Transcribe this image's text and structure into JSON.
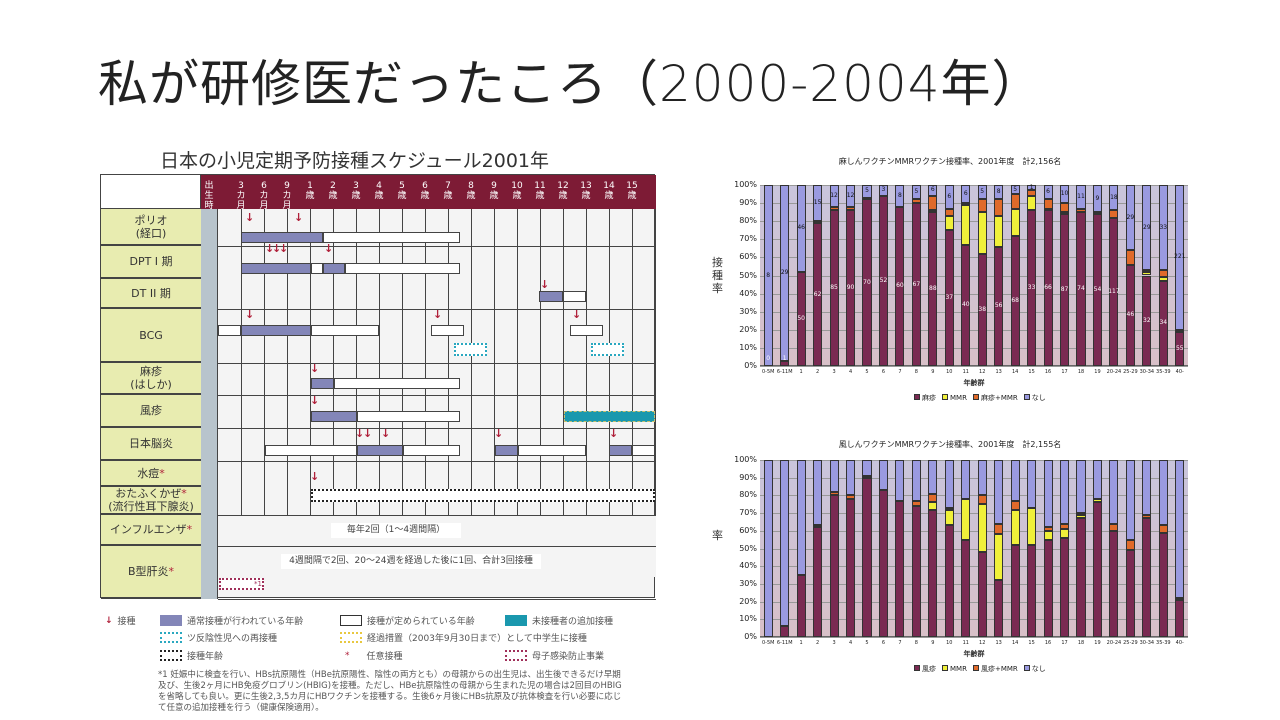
{
  "slide": {
    "title": "私が研修医だったころ（2000-2004年）"
  },
  "schedule": {
    "title": "日本の小児定期予防接種スケジュール2001年",
    "columns": [
      "出生時",
      "3カ月",
      "6カ月",
      "9カ月",
      "1歳",
      "2歳",
      "3歳",
      "4歳",
      "5歳",
      "6歳",
      "7歳",
      "8歳",
      "9歳",
      "10歳",
      "11歳",
      "12歳",
      "13歳",
      "14歳",
      "15歳"
    ],
    "rows": {
      "polio": "ポリオ",
      "polio_sub": "(経口)",
      "dpt1": "DPT I 期",
      "dt2": "DT II 期",
      "bcg": "BCG",
      "measles": "麻疹",
      "measles_sub": "(はしか)",
      "rubella": "風疹",
      "je": "日本脳炎",
      "varicella": "水痘",
      "mumps": "おたふくかぜ",
      "mumps_sub": "(流行性耳下腺炎)",
      "flu": "インフルエンザ",
      "hepb": "B型肝炎",
      "star": "*"
    },
    "flu_note": "毎年2回（1〜4週間隔）",
    "hepb_note": "4週間隔で2回、20〜24週を経過した後に1回、合計3回接種",
    "hepb_mark": "*1",
    "legend": {
      "arrow": "接種",
      "usual": "通常接種が行われている年齢",
      "defined": "接種が定められている年齢",
      "extra": "未接種者の追加接種",
      "tuberculin": "ツ反陰性児への再接種",
      "transitional": "経過措置（2003年9月30日まで）として中学生に接種",
      "age": "接種年齢",
      "optional": "任意接種",
      "mother": "母子感染防止事業",
      "star": "*"
    },
    "footnote": "*1 妊娠中に検査を行い、HBs抗原陽性（HBe抗原陽性、陰性の両方とも）の母親からの出生児は、出生後できるだけ早期及び、生後2ヶ月にHB免疫グロブリン(HBIG)を接種。ただし、HBe抗原陰性の母親から生まれた児の場合は2回目のHBIGを省略しても良い。更に生後2,3,5カ月にHBワクチンを接種する。生後6ヶ月後にHBs抗原及び抗体検査を行い必要に応じて任意の追加接種を行う（健康保険適用）。"
  },
  "colors": {
    "header": "#7d1b35",
    "label_bg": "#e8ecb0",
    "usual": "#8386b8",
    "extra": "#1a98ae",
    "arrow": "#b0203a",
    "s1": "#7a2a52",
    "s2": "#f0f03a",
    "s3": "#e06a2a",
    "s4": "#9a9ae0"
  },
  "chart_data": [
    {
      "type": "bar",
      "stacked": true,
      "title": "麻しんワクチンMMRワクチン接種率、2001年度　計2,156名",
      "xlabel": "年齢群",
      "ylabel": "接種率",
      "ylim": [
        0,
        100
      ],
      "yticks": [
        "0%",
        "10%",
        "20%",
        "30%",
        "40%",
        "50%",
        "60%",
        "70%",
        "80%",
        "90%",
        "100%"
      ],
      "legend_position": "bottom",
      "categories": [
        "0-5M",
        "6-11M",
        "1",
        "2",
        "3",
        "4",
        "5",
        "6",
        "7",
        "8",
        "9",
        "10",
        "11",
        "12",
        "13",
        "14",
        "15",
        "16",
        "17",
        "18",
        "19",
        "20-24",
        "25-29",
        "30-34",
        "35-39",
        "40-"
      ],
      "series": [
        {
          "name": "麻疹",
          "values": [
            0,
            3,
            52,
            79,
            86,
            86,
            92,
            94,
            88,
            90,
            85,
            75,
            67,
            62,
            66,
            72,
            86,
            86,
            84,
            85,
            84,
            82,
            56,
            50,
            47,
            19
          ]
        },
        {
          "name": "MMR",
          "values": [
            0,
            0,
            0,
            0,
            0,
            0,
            0,
            0,
            0,
            0,
            1,
            8,
            22,
            23,
            17,
            15,
            8,
            1,
            1,
            0,
            1,
            0,
            0,
            2,
            2,
            0
          ]
        },
        {
          "name": "麻疹+MMR",
          "values": [
            0,
            0,
            0,
            1,
            2,
            2,
            1,
            0,
            0,
            2,
            8,
            4,
            1,
            7,
            9,
            8,
            3,
            5,
            5,
            2,
            0,
            4,
            8,
            1,
            4,
            1
          ]
        },
        {
          "name": "なし",
          "values": [
            100,
            97,
            48,
            20,
            12,
            12,
            7,
            6,
            12,
            8,
            6,
            13,
            10,
            8,
            8,
            5,
            3,
            8,
            10,
            13,
            15,
            14,
            36,
            47,
            47,
            80
          ]
        }
      ],
      "count_labels_measles": [
        "0",
        "1",
        "50",
        "62",
        "85",
        "90",
        "70",
        "52",
        "60",
        "67",
        "88",
        "37",
        "40",
        "38",
        "56",
        "68",
        "33",
        "66",
        "87",
        "74",
        "54",
        "117",
        "46",
        "32",
        "34",
        "55"
      ],
      "count_labels_none": [
        "8",
        "29",
        "46",
        "15",
        "12",
        "12",
        "5",
        "3",
        "8",
        "5",
        "6",
        "6",
        "6",
        "5",
        "8",
        "5",
        "1",
        "6",
        "10",
        "11",
        "9",
        "18",
        "29",
        "29",
        "33",
        "221"
      ]
    },
    {
      "type": "bar",
      "stacked": true,
      "title": "風しんワクチンMMRワクチン接種率、2001年度　計2,155名",
      "xlabel": "年齢群",
      "ylabel": "率",
      "ylim": [
        0,
        100
      ],
      "yticks": [
        "0%",
        "10%",
        "20%",
        "30%",
        "40%",
        "50%",
        "60%",
        "70%",
        "80%",
        "90%",
        "100%"
      ],
      "legend_position": "bottom",
      "categories": [
        "0-5M",
        "6-11M",
        "1",
        "2",
        "3",
        "4",
        "5",
        "6",
        "7",
        "8",
        "9",
        "10",
        "11",
        "12",
        "13",
        "14",
        "15",
        "16",
        "17",
        "18",
        "19",
        "20-24",
        "25-29",
        "30-34",
        "35-39",
        "40-"
      ],
      "series": [
        {
          "name": "風疹",
          "values": [
            0,
            6,
            35,
            62,
            80,
            78,
            90,
            83,
            77,
            74,
            72,
            63,
            55,
            48,
            32,
            52,
            52,
            55,
            56,
            67,
            76,
            60,
            49,
            67,
            59,
            21
          ]
        },
        {
          "name": "MMR",
          "values": [
            0,
            0,
            0,
            0,
            0,
            0,
            0,
            0,
            0,
            0,
            4,
            9,
            23,
            27,
            26,
            20,
            21,
            5,
            5,
            2,
            2,
            0,
            0,
            0,
            0,
            0
          ]
        },
        {
          "name": "風疹+MMR",
          "values": [
            0,
            0,
            0,
            1,
            2,
            2,
            1,
            0,
            0,
            3,
            5,
            1,
            0,
            5,
            6,
            5,
            0,
            2,
            3,
            1,
            0,
            4,
            6,
            2,
            4,
            1
          ]
        },
        {
          "name": "なし",
          "values": [
            100,
            94,
            65,
            37,
            18,
            20,
            9,
            17,
            23,
            23,
            19,
            27,
            22,
            20,
            36,
            23,
            27,
            38,
            36,
            30,
            22,
            36,
            45,
            31,
            37,
            78
          ]
        }
      ]
    }
  ]
}
